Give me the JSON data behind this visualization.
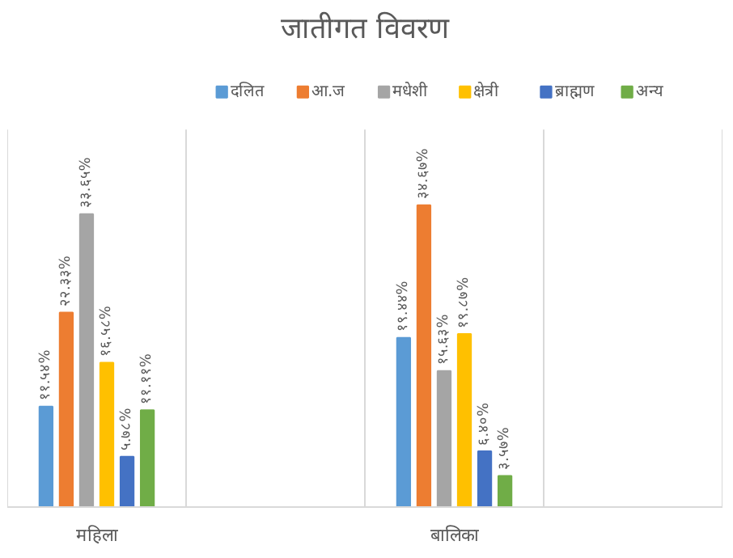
{
  "chart_data": {
    "type": "bar",
    "title": "जातीगत विवरण",
    "categories": [
      "महिला",
      null,
      "बालिका",
      null
    ],
    "series": [
      {
        "name": "दलित",
        "color": "#5b9bd5",
        "values": [
          11.54,
          null,
          19.44,
          null
        ],
        "value_labels": [
          "११.५४%",
          null,
          "१९.४४%",
          null
        ]
      },
      {
        "name": "आ.ज",
        "color": "#ed7d31",
        "values": [
          22.33,
          null,
          34.67,
          null
        ],
        "value_labels": [
          "२२.३३%",
          null,
          "३४.६७%",
          null
        ]
      },
      {
        "name": "मधेशी",
        "color": "#a5a5a5",
        "values": [
          33.65,
          null,
          15.63,
          null
        ],
        "value_labels": [
          "३३.६५%",
          null,
          "१५.६३%",
          null
        ]
      },
      {
        "name": "क्षेत्री",
        "color": "#ffc000",
        "values": [
          16.58,
          null,
          19.87,
          null
        ],
        "value_labels": [
          "१६.५८%",
          null,
          "१९.८७%",
          null
        ]
      },
      {
        "name": "ब्राह्मण",
        "color": "#4472c4",
        "values": [
          5.78,
          null,
          6.4,
          null
        ],
        "value_labels": [
          "५.७८%",
          null,
          "६.४०%",
          null
        ]
      },
      {
        "name": "अन्य",
        "color": "#70ad47",
        "values": [
          11.11,
          null,
          3.57,
          null
        ],
        "value_labels": [
          "११.११%",
          null,
          "३.५७%",
          null
        ]
      }
    ],
    "legend": "top",
    "grid": "x",
    "tick_labels": "x"
  }
}
